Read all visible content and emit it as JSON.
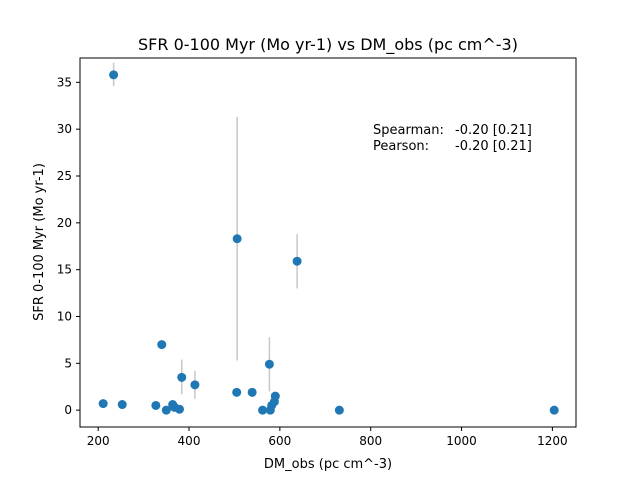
{
  "chart_data": {
    "type": "scatter",
    "title": "SFR 0-100 Myr (Mo yr-1) vs DM_obs (pc cm^-3)",
    "xlabel": "DM_obs (pc cm^-3)",
    "ylabel": "SFR 0-100 Myr (Mo yr-1)",
    "xlim": [
      160,
      1252
    ],
    "ylim": [
      -1.8,
      37.6
    ],
    "xticks": [
      200,
      400,
      600,
      800,
      1000,
      1200
    ],
    "xtick_labels": [
      "200",
      "400",
      "600",
      "800",
      "1000",
      "1200"
    ],
    "yticks": [
      0,
      5,
      10,
      15,
      20,
      25,
      30,
      35
    ],
    "ytick_labels": [
      "0",
      "5",
      "10",
      "15",
      "20",
      "25",
      "30",
      "35"
    ],
    "grid": false,
    "colors": {
      "marker": "#1f77b4",
      "errorbar": "#c8c8c8"
    },
    "points": [
      {
        "x": 211,
        "y": 0.7,
        "ylo": 0.5,
        "yhi": 0.9
      },
      {
        "x": 234,
        "y": 35.8,
        "ylo": 34.6,
        "yhi": 37.1
      },
      {
        "x": 253,
        "y": 0.6,
        "ylo": 0.4,
        "yhi": 0.8
      },
      {
        "x": 327,
        "y": 0.5,
        "ylo": 0.3,
        "yhi": 0.7
      },
      {
        "x": 340,
        "y": 7.0,
        "ylo": 6.9,
        "yhi": 7.1
      },
      {
        "x": 350,
        "y": 0.0,
        "ylo": 0.0,
        "yhi": 0.1
      },
      {
        "x": 364,
        "y": 0.6,
        "ylo": 0.4,
        "yhi": 0.8
      },
      {
        "x": 368,
        "y": 0.3,
        "ylo": 0.1,
        "yhi": 0.5
      },
      {
        "x": 379,
        "y": 0.1,
        "ylo": 0.0,
        "yhi": 0.2
      },
      {
        "x": 384,
        "y": 3.5,
        "ylo": 1.7,
        "yhi": 5.4
      },
      {
        "x": 413,
        "y": 2.7,
        "ylo": 1.2,
        "yhi": 4.2
      },
      {
        "x": 505,
        "y": 1.9,
        "ylo": 1.7,
        "yhi": 2.1
      },
      {
        "x": 506,
        "y": 18.3,
        "ylo": 5.3,
        "yhi": 31.3
      },
      {
        "x": 539,
        "y": 1.9,
        "ylo": 1.7,
        "yhi": 2.1
      },
      {
        "x": 562,
        "y": 0.0,
        "ylo": 0.0,
        "yhi": 0.1
      },
      {
        "x": 577,
        "y": 4.9,
        "ylo": 2.0,
        "yhi": 7.8
      },
      {
        "x": 579,
        "y": 0.0,
        "ylo": 0.0,
        "yhi": 0.1
      },
      {
        "x": 582,
        "y": 0.5,
        "ylo": 0.2,
        "yhi": 0.8
      },
      {
        "x": 588,
        "y": 0.9,
        "ylo": 0.6,
        "yhi": 1.2
      },
      {
        "x": 590,
        "y": 1.5,
        "ylo": 1.2,
        "yhi": 1.8
      },
      {
        "x": 638,
        "y": 15.9,
        "ylo": 13.0,
        "yhi": 18.8
      },
      {
        "x": 731,
        "y": 0.0,
        "ylo": 0.0,
        "yhi": 0.1
      },
      {
        "x": 1204,
        "y": 0.0,
        "ylo": 0.0,
        "yhi": 0.1
      }
    ],
    "annotations": [
      {
        "label": "Spearman:",
        "value": "-0.20 [0.21]"
      },
      {
        "label": "Pearson:",
        "value": "-0.20 [0.21]"
      }
    ]
  }
}
